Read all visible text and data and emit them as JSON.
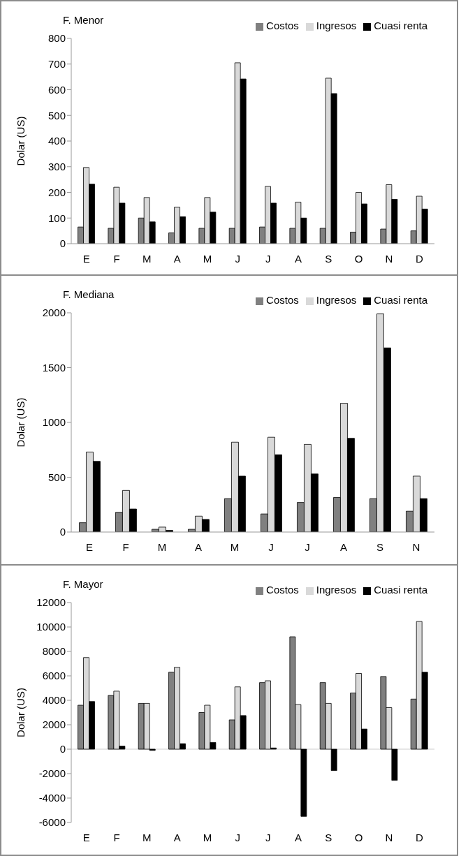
{
  "chart_data": [
    {
      "type": "bar",
      "title": "F. Menor",
      "ylabel": "Dolar (US)",
      "categories": [
        "E",
        "F",
        "M",
        "A",
        "M",
        "J",
        "J",
        "A",
        "S",
        "O",
        "N",
        "D"
      ],
      "ylim": [
        0,
        800
      ],
      "yticks": [
        0,
        100,
        200,
        300,
        400,
        500,
        600,
        700,
        800
      ],
      "grid": false,
      "legend": "top right",
      "series": [
        {
          "name": "Costos",
          "color": "#808080",
          "values": [
            65,
            60,
            100,
            42,
            60,
            60,
            65,
            60,
            60,
            45,
            57,
            50
          ]
        },
        {
          "name": "Ingresos",
          "color": "#d9d9d9",
          "values": [
            297,
            220,
            180,
            142,
            180,
            705,
            223,
            162,
            645,
            200,
            230,
            185
          ]
        },
        {
          "name": "Cuasi renta",
          "color": "#000000",
          "values": [
            232,
            158,
            85,
            105,
            123,
            642,
            158,
            100,
            585,
            155,
            173,
            135
          ]
        }
      ]
    },
    {
      "type": "bar",
      "title": "F. Mediana",
      "ylabel": "Dolar (US)",
      "categories": [
        "E",
        "F",
        "M",
        "A",
        "M",
        "J",
        "J",
        "A",
        "S",
        "N"
      ],
      "ylim": [
        0,
        2000
      ],
      "yticks": [
        0,
        500,
        1000,
        1500,
        2000
      ],
      "grid": false,
      "legend": "top right",
      "series": [
        {
          "name": "Costos",
          "color": "#808080",
          "values": [
            85,
            180,
            25,
            25,
            305,
            165,
            270,
            315,
            305,
            190
          ]
        },
        {
          "name": "Ingresos",
          "color": "#d9d9d9",
          "values": [
            730,
            380,
            45,
            145,
            820,
            865,
            800,
            1175,
            1990,
            510
          ]
        },
        {
          "name": "Cuasi renta",
          "color": "#000000",
          "values": [
            645,
            210,
            15,
            115,
            510,
            705,
            530,
            855,
            1680,
            305
          ]
        }
      ]
    },
    {
      "type": "bar",
      "title": "F. Mayor",
      "ylabel": "Dolar (US)",
      "categories": [
        "E",
        "F",
        "M",
        "A",
        "M",
        "J",
        "J",
        "A",
        "S",
        "O",
        "N",
        "D"
      ],
      "ylim": [
        -6000,
        12000
      ],
      "yticks": [
        -6000,
        -4000,
        -2000,
        0,
        2000,
        4000,
        6000,
        8000,
        10000,
        12000
      ],
      "grid": false,
      "legend": "top right",
      "ref_lines": [
        {
          "axis": "y",
          "value": 0,
          "color": "#999999",
          "line_style": "solid"
        }
      ],
      "series": [
        {
          "name": "Costos",
          "color": "#808080",
          "values": [
            3600,
            4400,
            3750,
            6300,
            3000,
            2400,
            5450,
            9200,
            5450,
            4600,
            5950,
            4100
          ]
        },
        {
          "name": "Ingresos",
          "color": "#d9d9d9",
          "values": [
            7500,
            4750,
            3750,
            6700,
            3600,
            5100,
            5600,
            3650,
            3750,
            6200,
            3400,
            10450
          ]
        },
        {
          "name": "Cuasi renta",
          "color": "#000000",
          "values": [
            3900,
            250,
            -100,
            450,
            550,
            2750,
            100,
            -5500,
            -1750,
            1650,
            -2550,
            6300
          ]
        }
      ]
    }
  ]
}
